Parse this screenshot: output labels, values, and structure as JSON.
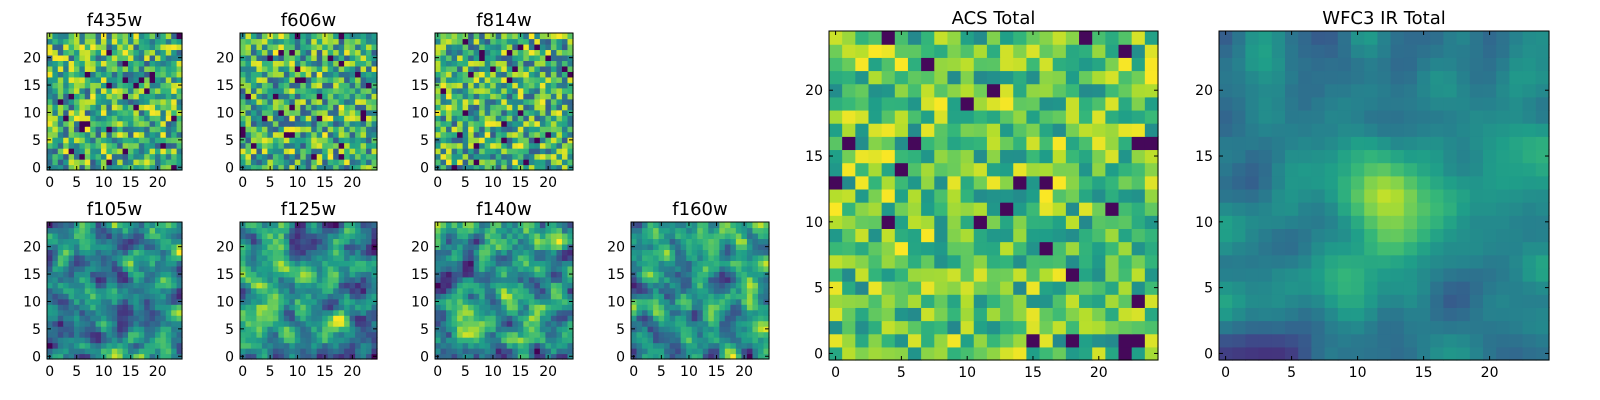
{
  "chart_data": [
    {
      "type": "heatmap",
      "title": "f435w",
      "colormap": "viridis",
      "grid": false,
      "xticks": [
        0,
        5,
        10,
        15,
        20
      ],
      "yticks": [
        0,
        5,
        10,
        15,
        20
      ],
      "xlim": [
        -0.5,
        24.5
      ],
      "ylim": [
        -0.5,
        24.5
      ],
      "shape": [
        25,
        25
      ],
      "style": "noise",
      "seed": 11
    },
    {
      "type": "heatmap",
      "title": "f606w",
      "colormap": "viridis",
      "grid": false,
      "xticks": [
        0,
        5,
        10,
        15,
        20
      ],
      "yticks": [
        0,
        5,
        10,
        15,
        20
      ],
      "xlim": [
        -0.5,
        24.5
      ],
      "ylim": [
        -0.5,
        24.5
      ],
      "shape": [
        25,
        25
      ],
      "style": "noise",
      "seed": 23
    },
    {
      "type": "heatmap",
      "title": "f814w",
      "colormap": "viridis",
      "grid": false,
      "xticks": [
        0,
        5,
        10,
        15,
        20
      ],
      "yticks": [
        0,
        5,
        10,
        15,
        20
      ],
      "xlim": [
        -0.5,
        24.5
      ],
      "ylim": [
        -0.5,
        24.5
      ],
      "shape": [
        25,
        25
      ],
      "style": "noise",
      "seed": 37
    },
    {
      "type": "heatmap",
      "title": "f105w",
      "colormap": "viridis",
      "grid": false,
      "xticks": [
        0,
        5,
        10,
        15,
        20
      ],
      "yticks": [
        0,
        5,
        10,
        15,
        20
      ],
      "xlim": [
        -0.5,
        24.5
      ],
      "ylim": [
        -0.5,
        24.5
      ],
      "shape": [
        25,
        25
      ],
      "style": "smooth",
      "seed": 41
    },
    {
      "type": "heatmap",
      "title": "f125w",
      "colormap": "viridis",
      "grid": false,
      "xticks": [
        0,
        5,
        10,
        15,
        20
      ],
      "yticks": [
        0,
        5,
        10,
        15,
        20
      ],
      "xlim": [
        -0.5,
        24.5
      ],
      "ylim": [
        -0.5,
        24.5
      ],
      "shape": [
        25,
        25
      ],
      "style": "smooth",
      "seed": 53
    },
    {
      "type": "heatmap",
      "title": "f140w",
      "colormap": "viridis",
      "grid": false,
      "xticks": [
        0,
        5,
        10,
        15,
        20
      ],
      "yticks": [
        0,
        5,
        10,
        15,
        20
      ],
      "xlim": [
        -0.5,
        24.5
      ],
      "ylim": [
        -0.5,
        24.5
      ],
      "shape": [
        25,
        25
      ],
      "style": "smooth",
      "seed": 67
    },
    {
      "type": "heatmap",
      "title": "f160w",
      "colormap": "viridis",
      "grid": false,
      "xticks": [
        0,
        5,
        10,
        15,
        20
      ],
      "yticks": [
        0,
        5,
        10,
        15,
        20
      ],
      "xlim": [
        -0.5,
        24.5
      ],
      "ylim": [
        -0.5,
        24.5
      ],
      "shape": [
        25,
        25
      ],
      "style": "smooth",
      "seed": 79
    },
    {
      "type": "heatmap",
      "title": "ACS Total",
      "colormap": "viridis",
      "grid": false,
      "xticks": [
        0,
        5,
        10,
        15,
        20
      ],
      "yticks": [
        0,
        5,
        10,
        15,
        20
      ],
      "xlim": [
        -0.5,
        24.5
      ],
      "ylim": [
        -0.5,
        24.5
      ],
      "shape": [
        25,
        25
      ],
      "style": "bright",
      "seed": 83
    },
    {
      "type": "heatmap",
      "title": "WFC3 IR Total",
      "colormap": "viridis",
      "grid": false,
      "xticks": [
        0,
        5,
        10,
        15,
        20
      ],
      "yticks": [
        0,
        5,
        10,
        15,
        20
      ],
      "xlim": [
        -0.5,
        24.5
      ],
      "ylim": [
        -0.5,
        24.5
      ],
      "shape": [
        25,
        25
      ],
      "style": "source",
      "source_center": [
        12.5,
        11.5
      ],
      "seed": 97
    }
  ]
}
